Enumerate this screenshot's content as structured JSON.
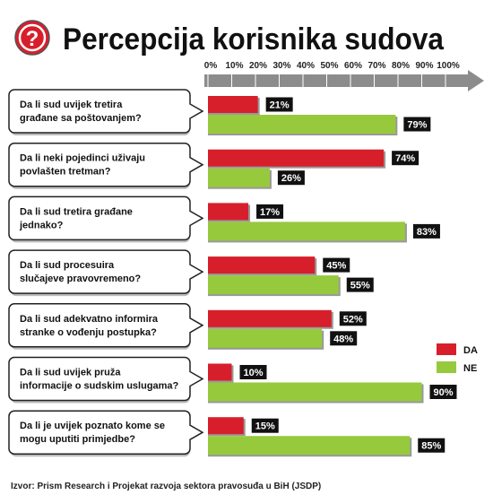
{
  "chart_data": {
    "type": "bar",
    "orientation": "horizontal",
    "title": "Percepcija korisnika sudova",
    "categories": [
      "Da li sud uvijek tretira\ngrađane sa poštovanjem?",
      "Da li neki pojedinci uživaju\npovlašten tretman?",
      "Da li sud tretira građane\njednako?",
      "Da li sud procesuira\nslučajeve pravovremeno?",
      "Da li sud adekvatno informira\nstranke o vođenju postupka?",
      "Da li sud uvijek pruža\ninformacije o sudskim uslugama?",
      "Da li je uvijek poznato kome se\nmogu uputiti primjedbe?"
    ],
    "series": [
      {
        "name": "DA",
        "color": "#d71f2b",
        "values": [
          21,
          74,
          17,
          45,
          52,
          10,
          15
        ],
        "value_labels": [
          "21%",
          "74%",
          "17%",
          "45%",
          "52%",
          "10%",
          "15%"
        ]
      },
      {
        "name": "NE",
        "color": "#97c93d",
        "values": [
          79,
          26,
          83,
          55,
          48,
          90,
          85
        ],
        "value_labels": [
          "79%",
          "26%",
          "83%",
          "55%",
          "48%",
          "90%",
          "85%"
        ]
      }
    ],
    "xlim": [
      0,
      100
    ],
    "xticks": [
      {
        "value": 0,
        "label": "0%"
      },
      {
        "value": 10,
        "label": "10%"
      },
      {
        "value": 20,
        "label": "20%"
      },
      {
        "value": 30,
        "label": "30%"
      },
      {
        "value": 40,
        "label": "40%"
      },
      {
        "value": 50,
        "label": "50%"
      },
      {
        "value": 60,
        "label": "60%"
      },
      {
        "value": 70,
        "label": "70%"
      },
      {
        "value": 80,
        "label": "80%"
      },
      {
        "value": 90,
        "label": "90%"
      },
      {
        "value": 100,
        "label": "100%"
      }
    ],
    "legend": "bottom-right",
    "source": "Izvor: Prism Research i Projekat razvoja sektora pravosuđa u BiH (JSDP)"
  }
}
